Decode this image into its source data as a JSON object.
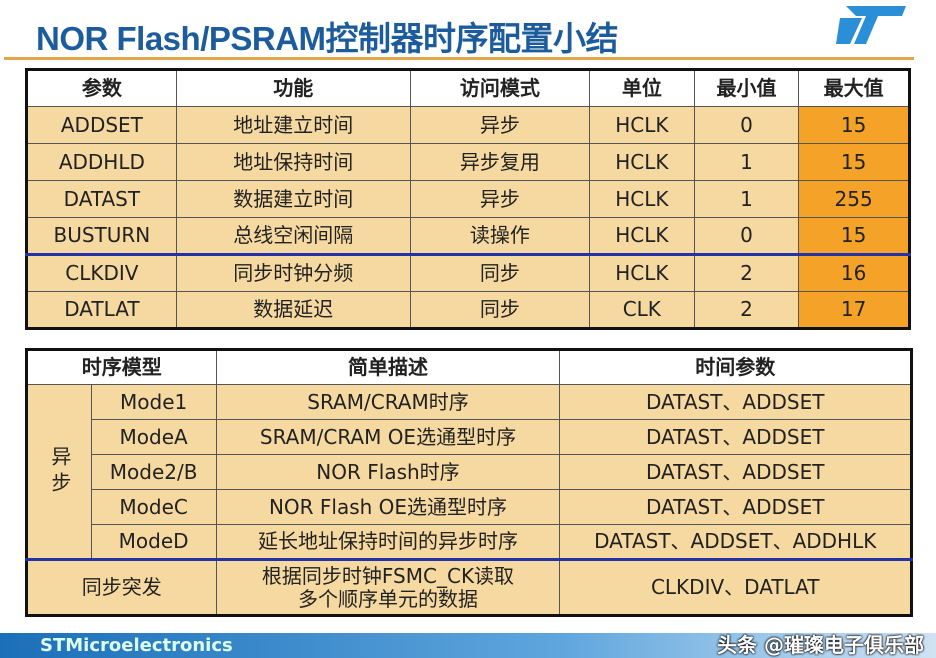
{
  "title": "NOR Flash/PSRAM控制器时序配置小结",
  "logo_text": "ST",
  "table1": {
    "headers": [
      "参数",
      "功能",
      "访问模式",
      "单位",
      "最小值",
      "最大值"
    ],
    "rows": [
      [
        "ADDSET",
        "地址建立时间",
        "异步",
        "HCLK",
        "0",
        "15"
      ],
      [
        "ADDHLD",
        "地址保持时间",
        "异步复用",
        "HCLK",
        "1",
        "15"
      ],
      [
        "DATAST",
        "数据建立时间",
        "异步",
        "HCLK",
        "1",
        "255"
      ],
      [
        "BUSTURN",
        "总线空闲间隔",
        "读操作",
        "HCLK",
        "0",
        "15"
      ],
      [
        "CLKDIV",
        "同步时钟分频",
        "同步",
        "HCLK",
        "2",
        "16"
      ],
      [
        "DATLAT",
        "数据延迟",
        "同步",
        "CLK",
        "2",
        "17"
      ]
    ],
    "max_color": "#f4a328"
  },
  "table2": {
    "headers": [
      "时序模型",
      "简单描述",
      "时间参数"
    ],
    "async_label": "异步",
    "rows": [
      [
        "Mode1",
        "SRAM/CRAM时序",
        "DATAST、ADDSET"
      ],
      [
        "ModeA",
        "SRAM/CRAM OE选通型时序",
        "DATAST、ADDSET"
      ],
      [
        "Mode2/B",
        "NOR Flash时序",
        "DATAST、ADDSET"
      ],
      [
        "ModeC",
        "NOR Flash OE选通型时序",
        "DATAST、ADDSET"
      ],
      [
        "ModeD",
        "延长地址保持时间的异步时序",
        "DATAST、ADDSET、ADDHLK"
      ]
    ],
    "sync": {
      "model": "同步突发",
      "desc": "根据同步时钟FSMC_CK读取多个顺序单元的数据",
      "params": "CLKDIV、DATLAT"
    }
  },
  "footer": "STMicroelectronics",
  "watermark": "头条 @璀璨电子俱乐部"
}
